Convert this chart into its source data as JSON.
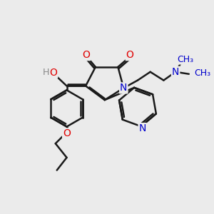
{
  "bg_color": "#ebebeb",
  "bond_color": "#1a1a1a",
  "bond_width": 1.8,
  "atom_colors": {
    "O": "#e00000",
    "N": "#0000cc",
    "H": "#888888",
    "C": "#1a1a1a"
  },
  "font_size": 10,
  "fig_size": [
    3.0,
    3.0
  ],
  "dpi": 100
}
